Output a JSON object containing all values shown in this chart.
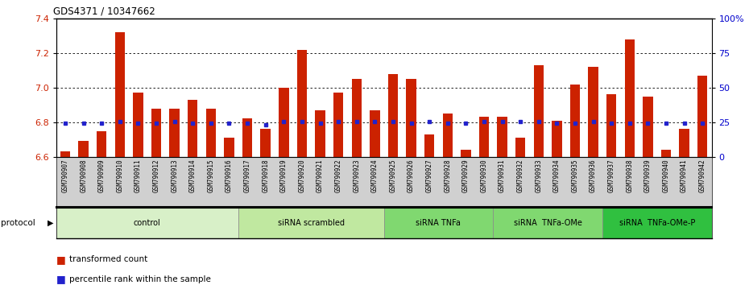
{
  "title": "GDS4371 / 10347662",
  "samples": [
    "GSM790907",
    "GSM790908",
    "GSM790909",
    "GSM790910",
    "GSM790911",
    "GSM790912",
    "GSM790913",
    "GSM790914",
    "GSM790915",
    "GSM790916",
    "GSM790917",
    "GSM790918",
    "GSM790919",
    "GSM790920",
    "GSM790921",
    "GSM790922",
    "GSM790923",
    "GSM790924",
    "GSM790925",
    "GSM790926",
    "GSM790927",
    "GSM790928",
    "GSM790929",
    "GSM790930",
    "GSM790931",
    "GSM790932",
    "GSM790933",
    "GSM790934",
    "GSM790935",
    "GSM790936",
    "GSM790937",
    "GSM790938",
    "GSM790939",
    "GSM790940",
    "GSM790941",
    "GSM790942"
  ],
  "transformed_count": [
    6.63,
    6.69,
    6.75,
    7.32,
    6.97,
    6.88,
    6.88,
    6.93,
    6.88,
    6.71,
    6.82,
    6.76,
    7.0,
    7.22,
    6.87,
    6.97,
    7.05,
    6.87,
    7.08,
    7.05,
    6.73,
    6.85,
    6.64,
    6.83,
    6.83,
    6.71,
    7.13,
    6.81,
    7.02,
    7.12,
    6.96,
    7.28,
    6.95,
    6.64,
    6.76,
    7.07
  ],
  "percentile_rank": [
    6.793,
    6.793,
    6.793,
    6.803,
    6.793,
    6.793,
    6.803,
    6.793,
    6.793,
    6.793,
    6.793,
    6.783,
    6.803,
    6.803,
    6.793,
    6.803,
    6.803,
    6.803,
    6.803,
    6.793,
    6.803,
    6.793,
    6.793,
    6.803,
    6.803,
    6.803,
    6.803,
    6.793,
    6.793,
    6.803,
    6.793,
    6.793,
    6.793,
    6.793,
    6.793,
    6.793
  ],
  "groups": [
    {
      "label": "control",
      "start": 0,
      "end": 10,
      "color": "#d8f0c8"
    },
    {
      "label": "siRNA scrambled",
      "start": 10,
      "end": 18,
      "color": "#c0e8a0"
    },
    {
      "label": "siRNA TNFa",
      "start": 18,
      "end": 24,
      "color": "#80d870"
    },
    {
      "label": "siRNA  TNFa-OMe",
      "start": 24,
      "end": 30,
      "color": "#80d870"
    },
    {
      "label": "siRNA  TNFa-OMe-P",
      "start": 30,
      "end": 36,
      "color": "#30c040"
    }
  ],
  "ymin": 6.6,
  "ymax": 7.4,
  "yticks_left": [
    6.6,
    6.8,
    7.0,
    7.2,
    7.4
  ],
  "yticks_right_vals": [
    0,
    25,
    50,
    75,
    100
  ],
  "yticks_right_labels": [
    "0",
    "25",
    "50",
    "75",
    "100%"
  ],
  "bar_color": "#cc2200",
  "dot_color": "#2222cc",
  "xticklabel_bg": "#d0d0d0",
  "grid_color": "#000000",
  "right_axis_color": "#0000cc",
  "left_axis_color": "#cc2200"
}
